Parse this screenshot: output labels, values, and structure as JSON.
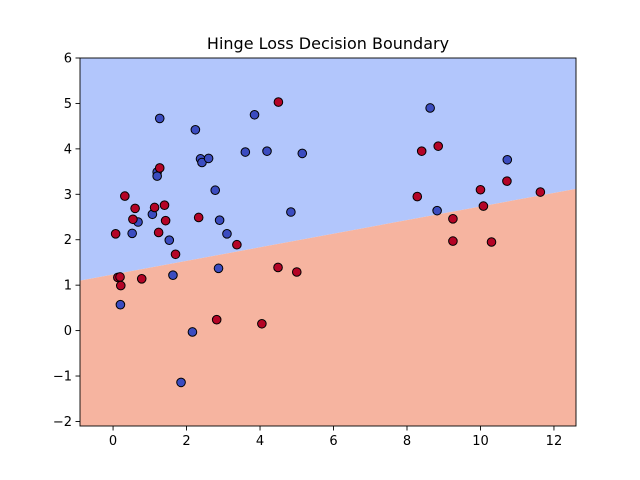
{
  "chart_data": {
    "type": "scatter",
    "title": "Hinge Loss Decision Boundary",
    "xlabel": "",
    "ylabel": "",
    "xlim": [
      -0.9,
      12.6
    ],
    "ylim": [
      -2.1,
      6.0
    ],
    "x_ticks": [
      0,
      2,
      4,
      6,
      8,
      10,
      12
    ],
    "y_ticks": [
      -2,
      -1,
      0,
      1,
      2,
      3,
      4,
      5,
      6
    ],
    "grid": false,
    "legend": "none",
    "decision_boundary": {
      "points": [
        [
          -0.9,
          1.1
        ],
        [
          12.6,
          3.12
        ]
      ],
      "region_above_color": "#b2c6fc",
      "region_below_color": "#f6b4a0"
    },
    "series": [
      {
        "color": "#3b4cc0",
        "points": [
          [
            0.2,
            0.57
          ],
          [
            0.52,
            2.14
          ],
          [
            0.68,
            2.39
          ],
          [
            1.07,
            2.56
          ],
          [
            1.2,
            3.49
          ],
          [
            1.2,
            3.4
          ],
          [
            1.27,
            4.67
          ],
          [
            1.53,
            1.99
          ],
          [
            1.63,
            1.22
          ],
          [
            1.85,
            -1.14
          ],
          [
            2.16,
            -0.03
          ],
          [
            2.24,
            4.42
          ],
          [
            2.38,
            3.78
          ],
          [
            2.42,
            3.7
          ],
          [
            2.6,
            3.79
          ],
          [
            2.78,
            3.09
          ],
          [
            2.87,
            1.37
          ],
          [
            2.9,
            2.43
          ],
          [
            3.1,
            2.13
          ],
          [
            3.85,
            4.75
          ],
          [
            3.6,
            3.93
          ],
          [
            4.19,
            3.95
          ],
          [
            4.84,
            2.61
          ],
          [
            5.15,
            3.9
          ],
          [
            8.63,
            4.9
          ],
          [
            8.82,
            2.64
          ],
          [
            10.73,
            3.76
          ]
        ]
      },
      {
        "color": "#b40426",
        "points": [
          [
            0.07,
            2.13
          ],
          [
            0.13,
            1.17
          ],
          [
            0.19,
            1.18
          ],
          [
            0.21,
            0.99
          ],
          [
            0.32,
            2.96
          ],
          [
            0.54,
            2.45
          ],
          [
            0.6,
            2.69
          ],
          [
            0.78,
            1.14
          ],
          [
            1.13,
            2.71
          ],
          [
            1.24,
            2.16
          ],
          [
            1.27,
            3.58
          ],
          [
            1.4,
            2.76
          ],
          [
            1.43,
            2.42
          ],
          [
            1.7,
            1.68
          ],
          [
            2.33,
            2.49
          ],
          [
            2.82,
            0.24
          ],
          [
            3.37,
            1.89
          ],
          [
            4.05,
            0.15
          ],
          [
            4.49,
            1.39
          ],
          [
            4.5,
            5.03
          ],
          [
            5.0,
            1.29
          ],
          [
            8.28,
            2.95
          ],
          [
            8.4,
            3.95
          ],
          [
            8.85,
            4.06
          ],
          [
            9.25,
            2.46
          ],
          [
            9.25,
            1.97
          ],
          [
            10.0,
            3.1
          ],
          [
            10.08,
            2.74
          ],
          [
            10.3,
            1.95
          ],
          [
            10.72,
            3.29
          ],
          [
            11.63,
            3.05
          ]
        ]
      }
    ]
  }
}
